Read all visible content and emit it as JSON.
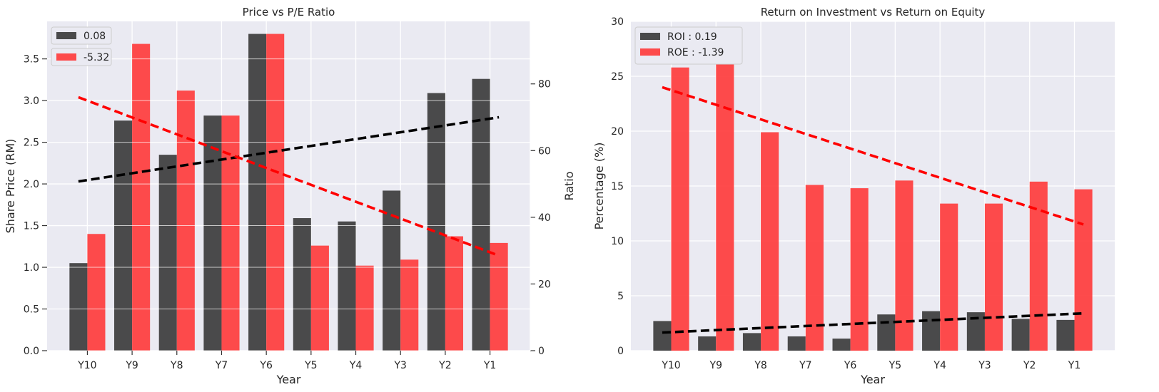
{
  "chart_data": [
    {
      "type": "bar",
      "title": "Price vs P/E Ratio",
      "xlabel": "Year",
      "ylabel": "Share Price (RM)",
      "y2label": "Ratio",
      "categories": [
        "Y10",
        "Y9",
        "Y8",
        "Y7",
        "Y6",
        "Y5",
        "Y4",
        "Y3",
        "Y2",
        "Y1"
      ],
      "ylim": [
        0,
        3.95
      ],
      "y2lim": [
        0,
        98.75
      ],
      "yticks": [
        "0.0",
        "0.5",
        "1.0",
        "1.5",
        "2.0",
        "2.5",
        "3.0",
        "3.5"
      ],
      "y2ticks": [
        "0",
        "20",
        "40",
        "60",
        "80"
      ],
      "grid": true,
      "legend_position": "top-left",
      "series": [
        {
          "name": "0.08",
          "axis": "left",
          "color": "#333333",
          "values": [
            1.05,
            2.76,
            2.35,
            2.82,
            3.8,
            1.59,
            1.55,
            1.92,
            3.09,
            3.26
          ]
        },
        {
          "name": "-5.32",
          "axis": "right",
          "color": "#ff3333",
          "values": [
            35,
            92,
            78,
            70.5,
            95,
            31.5,
            25.5,
            27.3,
            34.3,
            32.3
          ]
        }
      ],
      "trendlines": [
        {
          "series": "0.08",
          "axis": "left",
          "color": "#000000",
          "start": 2.03,
          "end": 2.8
        },
        {
          "series": "-5.32",
          "axis": "right",
          "color": "#ff0000",
          "start": 76,
          "end": 28.5
        }
      ]
    },
    {
      "type": "bar",
      "title": "Return on Investment vs Return on Equity",
      "xlabel": "Year",
      "ylabel": "Percentage (%)",
      "categories": [
        "Y10",
        "Y9",
        "Y8",
        "Y7",
        "Y6",
        "Y5",
        "Y4",
        "Y3",
        "Y2",
        "Y1"
      ],
      "ylim": [
        0,
        30
      ],
      "yticks": [
        "0",
        "5",
        "10",
        "15",
        "20",
        "25",
        "30"
      ],
      "grid": true,
      "legend_position": "top-left",
      "series": [
        {
          "name": "ROI : 0.19",
          "color": "#333333",
          "values": [
            2.7,
            1.3,
            1.6,
            1.3,
            1.1,
            3.3,
            3.6,
            3.5,
            2.9,
            2.8
          ]
        },
        {
          "name": "ROE : -1.39",
          "color": "#ff3333",
          "values": [
            25.8,
            28.7,
            19.9,
            15.1,
            14.8,
            15.5,
            13.4,
            13.4,
            15.4,
            14.7
          ]
        }
      ],
      "trendlines": [
        {
          "series": "ROI : 0.19",
          "color": "#000000",
          "start": 1.65,
          "end": 3.4
        },
        {
          "series": "ROE : -1.39",
          "color": "#ff0000",
          "start": 24.0,
          "end": 11.5
        }
      ]
    }
  ]
}
